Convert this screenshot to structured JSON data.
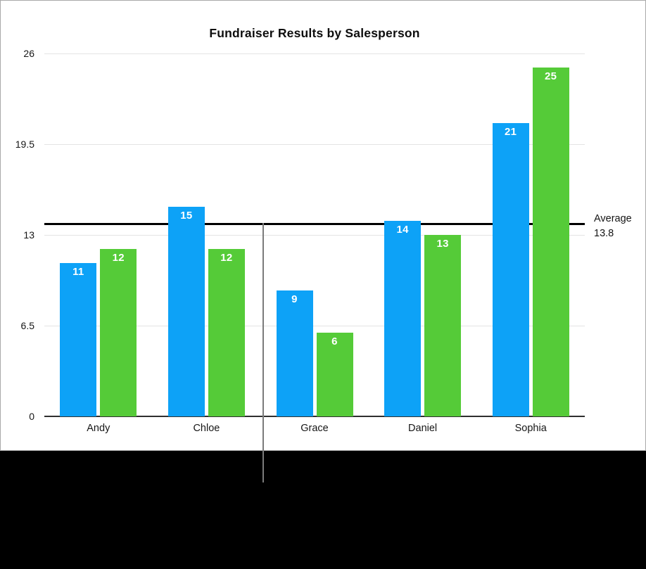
{
  "panel": {
    "background": "#ffffff",
    "border_color": "#a9a9a9"
  },
  "chart_data": {
    "type": "bar",
    "title": "Fundraiser Results by Salesperson",
    "categories": [
      "Andy",
      "Chloe",
      "Grace",
      "Daniel",
      "Sophia"
    ],
    "series": [
      {
        "color": "#0da2f7",
        "values": [
          11,
          15,
          9,
          14,
          21
        ]
      },
      {
        "color": "#55cb38",
        "values": [
          12,
          12,
          6,
          13,
          25
        ]
      }
    ],
    "value_labels_shown": true,
    "xlabel": "",
    "ylabel": "",
    "ylim": [
      0,
      26
    ],
    "yticks": [
      0,
      6.5,
      13,
      19.5,
      26
    ],
    "grid": true,
    "legend": "none",
    "annotation": {
      "type": "reference-line",
      "label_line1": "Average",
      "label_line2": "13.8",
      "value": 13.8,
      "color": "#000000"
    }
  },
  "colors": {
    "gridline": "#e4e4e4",
    "axis": "#2f2f2f",
    "average_line": "#000000",
    "callout_line": "#7b7b7b",
    "value_label_text": "#ffffff",
    "tick_label_text": "#161616",
    "background_below": "#000000"
  }
}
